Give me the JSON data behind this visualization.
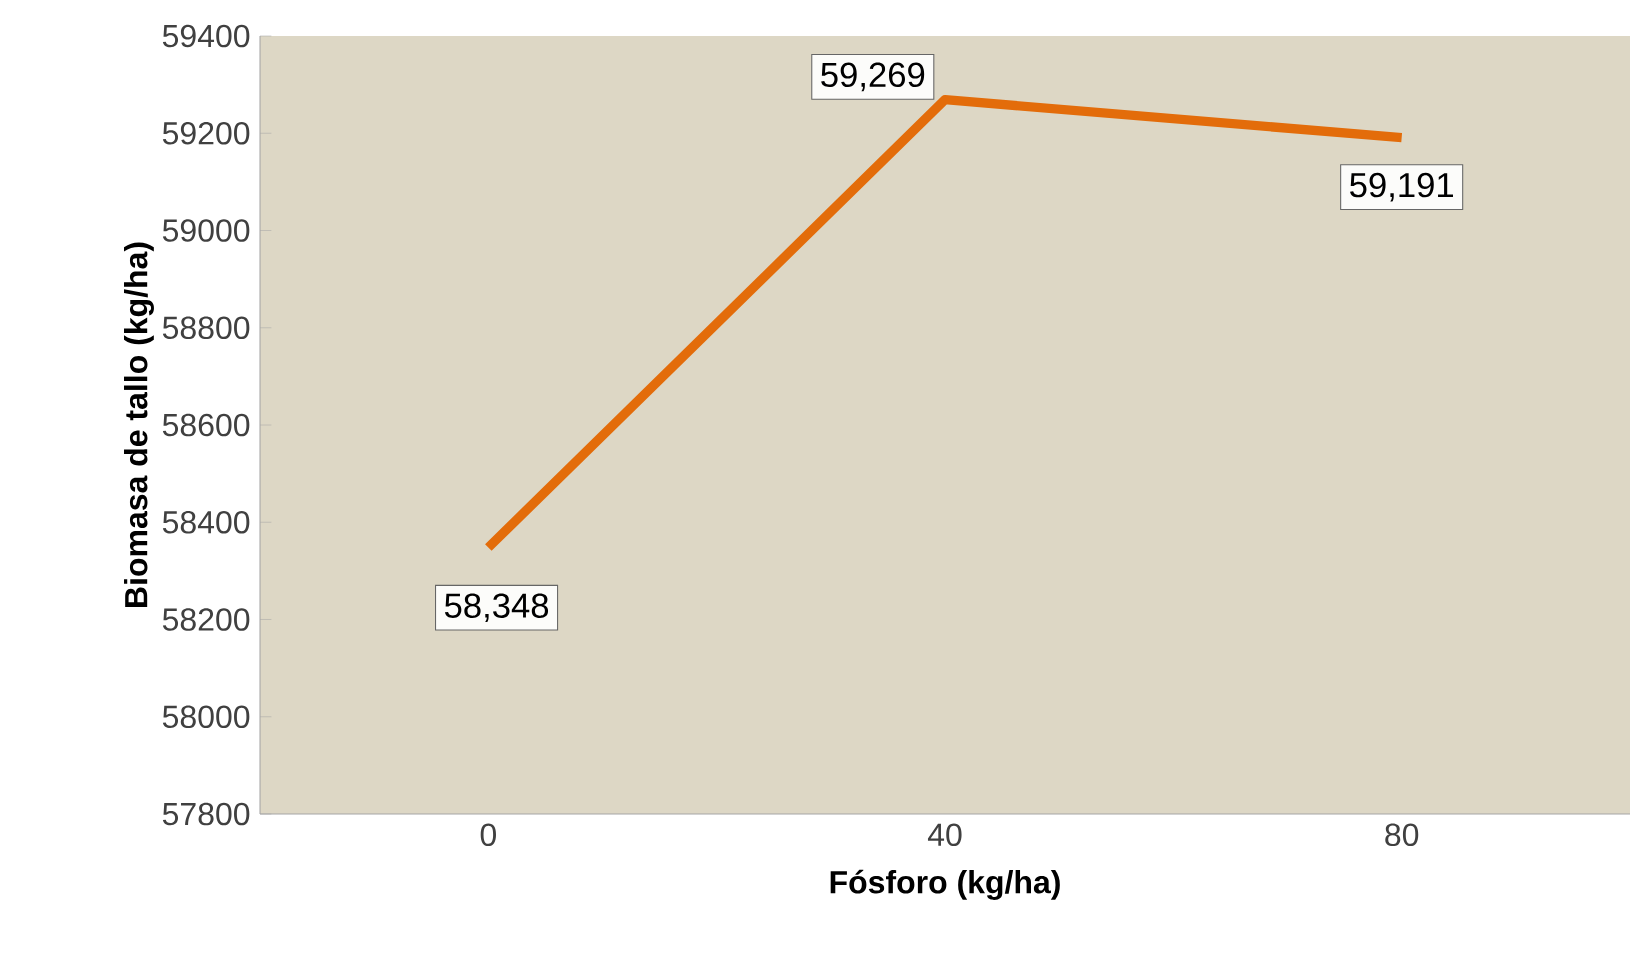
{
  "chart_data": {
    "type": "line",
    "xlabel": "Fósforo (kg/ha)",
    "ylabel": "Biomasa de tallo (kg/ha)",
    "categories": [
      "0",
      "40",
      "80"
    ],
    "values": [
      58348,
      59269,
      59191
    ],
    "value_labels": [
      "58,348",
      "59,269",
      "59,191"
    ],
    "color": "#e36c0a",
    "ylim": [
      57800,
      59400
    ],
    "yticks": [
      57800,
      58000,
      58200,
      58400,
      58600,
      58800,
      59000,
      59200,
      59400
    ],
    "grid": false,
    "marker": "none",
    "line_style": "solid"
  }
}
